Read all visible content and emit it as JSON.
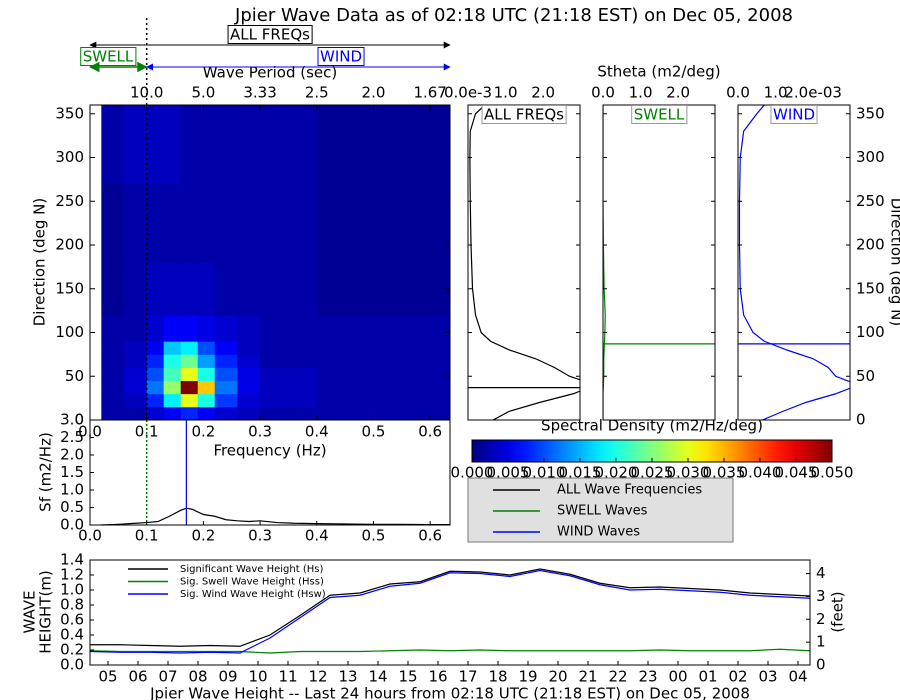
{
  "title": "Jpier Wave Data as of 02:18 UTC (21:18 EST) on Dec 05, 2008",
  "annotations": {
    "all_freqs": "ALL FREQs",
    "swell": "SWELL",
    "wind": "WIND"
  },
  "chart_data": [
    {
      "type": "heatmap",
      "xlabel": "Frequency (Hz)",
      "ylabel": "Direction (deg N)",
      "top_xlabel": "Wave Period (sec)",
      "xlim": [
        0,
        0.635
      ],
      "ylim": [
        0,
        360
      ],
      "xticks": [
        {
          "value": 0,
          "label": "0.0"
        },
        0.1,
        0.2,
        0.3,
        0.4,
        0.5,
        0.6
      ],
      "top_xticks": [
        {
          "value": 0.1,
          "label": "10.0"
        },
        {
          "value": 0.2,
          "label": "5.0"
        },
        {
          "value": 0.3,
          "label": "3.33"
        },
        {
          "value": 0.4,
          "label": "2.5"
        },
        {
          "value": 0.5,
          "label": "2.0"
        },
        {
          "value": 0.6,
          "label": "1.67"
        }
      ],
      "yticks": [
        0,
        50,
        100,
        150,
        200,
        250,
        300,
        350
      ],
      "x_edges": [
        0.02,
        0.06,
        0.1,
        0.13,
        0.16,
        0.19,
        0.22,
        0.26,
        0.3,
        0.4,
        0.635
      ],
      "y_edges": [
        0,
        15,
        30,
        45,
        60,
        75,
        90,
        120,
        180,
        270,
        360
      ],
      "values": [
        [
          0.002,
          0.002,
          0.004,
          0.006,
          0.008,
          0.006,
          0.004,
          0.003,
          0.002,
          0.002
        ],
        [
          0.002,
          0.003,
          0.008,
          0.018,
          0.03,
          0.02,
          0.009,
          0.004,
          0.003,
          0.002
        ],
        [
          0.002,
          0.004,
          0.012,
          0.026,
          0.05,
          0.034,
          0.012,
          0.005,
          0.003,
          0.002
        ],
        [
          0.002,
          0.004,
          0.01,
          0.022,
          0.03,
          0.02,
          0.01,
          0.005,
          0.003,
          0.002
        ],
        [
          0.002,
          0.003,
          0.008,
          0.02,
          0.024,
          0.014,
          0.008,
          0.004,
          0.002,
          0.002
        ],
        [
          0.002,
          0.003,
          0.006,
          0.016,
          0.018,
          0.01,
          0.006,
          0.003,
          0.002,
          0.002
        ],
        [
          0.002,
          0.002,
          0.004,
          0.006,
          0.006,
          0.005,
          0.004,
          0.003,
          0.002,
          0.002
        ],
        [
          0.001,
          0.002,
          0.003,
          0.003,
          0.003,
          0.003,
          0.002,
          0.002,
          0.002,
          0.001
        ],
        [
          0.001,
          0.002,
          0.002,
          0.002,
          0.002,
          0.002,
          0.002,
          0.002,
          0.002,
          0.001
        ],
        [
          0.002,
          0.003,
          0.003,
          0.003,
          0.002,
          0.002,
          0.002,
          0.002,
          0.002,
          0.001
        ]
      ],
      "separation_frequency": 0.1,
      "colormap": "jet",
      "colorbar": {
        "label": "Spectral Density (m2/Hz/deg)",
        "lim": [
          0,
          0.05
        ],
        "ticks": [
          {
            "value": 0,
            "label": "0.000"
          },
          0.005,
          {
            "value": 0.01,
            "label": "0.010"
          },
          0.015,
          {
            "value": 0.02,
            "label": "0.020"
          },
          0.025,
          {
            "value": 0.03,
            "label": "0.030"
          },
          0.035,
          {
            "value": 0.04,
            "label": "0.040"
          },
          0.045,
          {
            "value": 0.05,
            "label": "0.050"
          }
        ]
      }
    },
    {
      "type": "profile",
      "xlabel": "Stheta (m2/deg)",
      "ylabel": "Direction (deg N)",
      "y": [
        0,
        10,
        20,
        30,
        40,
        50,
        60,
        70,
        80,
        90,
        100,
        120,
        150,
        200,
        250,
        300,
        330,
        350,
        360
      ],
      "ylim": [
        0,
        360
      ],
      "yticks": [
        0,
        50,
        100,
        150,
        200,
        250,
        300,
        350
      ],
      "series": [
        {
          "name": "ALL Wave Frequencies",
          "title": "ALL FREQs",
          "color": "#000000",
          "xlim": [
            0,
            2.98
          ],
          "xticks": [
            {
              "value": 0,
              "label": "0.0e-3"
            },
            {
              "value": 1,
              "label": "1.0"
            },
            {
              "value": 2,
              "label": "2.0"
            }
          ],
          "values": [
            0.67,
            1.1,
            1.9,
            2.8,
            3.4,
            2.7,
            2.3,
            1.8,
            1.1,
            0.6,
            0.35,
            0.2,
            0.12,
            0.08,
            0.06,
            0.05,
            0.06,
            0.2,
            0.45
          ],
          "mean_direction": 37
        },
        {
          "name": "SWELL Waves",
          "title": "SWELL",
          "color": "#008000",
          "xlim": [
            0,
            2.98
          ],
          "xticks": [
            {
              "value": 0,
              "label": "0.0"
            },
            {
              "value": 1,
              "label": "1.0"
            },
            {
              "value": 2,
              "label": "2.0"
            }
          ],
          "values": [
            0,
            0,
            0,
            0,
            0.01,
            0.02,
            0.02,
            0.02,
            0.03,
            0.04,
            0.05,
            0.06,
            0.03,
            0.01,
            0,
            0,
            0,
            0,
            0
          ],
          "mean_direction": 87
        },
        {
          "name": "WIND Waves",
          "title": "WIND",
          "color": "#0000ff",
          "xlim": [
            0,
            2.98
          ],
          "xticks": [
            {
              "value": 0,
              "label": "0.0"
            },
            {
              "value": 1,
              "label": "1.0"
            },
            {
              "value": 2,
              "label": "2.0e-03"
            }
          ],
          "values": [
            0.65,
            1.2,
            1.8,
            2.6,
            3.2,
            2.6,
            2.4,
            2.0,
            1.3,
            0.7,
            0.4,
            0.15,
            0.06,
            0.04,
            0.04,
            0.06,
            0.15,
            0.5,
            0.7
          ],
          "mean_direction": 87
        }
      ]
    },
    {
      "type": "line",
      "ylabel": "Sf (m2/Hz)",
      "color": "#000000",
      "x": [
        0.02,
        0.05,
        0.08,
        0.1,
        0.12,
        0.14,
        0.16,
        0.17,
        0.18,
        0.2,
        0.22,
        0.24,
        0.26,
        0.28,
        0.3,
        0.33,
        0.36,
        0.4,
        0.45,
        0.5,
        0.55,
        0.6,
        0.635
      ],
      "values": [
        0,
        0.02,
        0.05,
        0.07,
        0.1,
        0.25,
        0.42,
        0.48,
        0.45,
        0.3,
        0.25,
        0.15,
        0.12,
        0.1,
        0.12,
        0.07,
        0.05,
        0.04,
        0.03,
        0.02,
        0.02,
        0.01,
        0.01
      ],
      "xlim": [
        0,
        0.635
      ],
      "xticks": [
        {
          "value": 0,
          "label": "0.0"
        },
        0.1,
        0.2,
        0.3,
        0.4,
        0.5,
        0.6
      ],
      "ylim": [
        0,
        3
      ],
      "yticks": [
        {
          "value": 0,
          "label": "0.0"
        },
        0.5,
        {
          "value": 1,
          "label": "1.0"
        },
        1.5,
        {
          "value": 2,
          "label": "2.0"
        },
        2.5,
        {
          "value": 3,
          "label": "3.0"
        }
      ],
      "separation_frequency": 0.1,
      "separation_color": "#008000",
      "peak_frequency": 0.17,
      "peak_color": "#0000ff"
    },
    {
      "type": "timeseries",
      "xlabel": "Jpier Wave Height -- Last 24 hours from 02:18 UTC (21:18 EST) on Dec 05, 2008",
      "ylabel": [
        "WAVE",
        "HEIGHT(m)"
      ],
      "y2label": "(feet)",
      "x": [
        4.4,
        5.4,
        6.4,
        7.4,
        8.4,
        9.4,
        10.4,
        11.4,
        12.4,
        13.4,
        14.4,
        15.4,
        16.4,
        17.4,
        18.4,
        19.4,
        20.4,
        21.4,
        22.4,
        23.4,
        24.4,
        25.4,
        26.4,
        27.4,
        28.4
      ],
      "xlim": [
        4.4,
        28.4
      ],
      "xticks": [
        {
          "value": 5,
          "label": "05"
        },
        {
          "value": 6,
          "label": "06"
        },
        {
          "value": 7,
          "label": "07"
        },
        {
          "value": 8,
          "label": "08"
        },
        {
          "value": 9,
          "label": "09"
        },
        10,
        11,
        12,
        13,
        14,
        15,
        16,
        17,
        18,
        19,
        20,
        21,
        22,
        23,
        {
          "value": 24,
          "label": "00"
        },
        {
          "value": 25,
          "label": "01"
        },
        {
          "value": 26,
          "label": "02"
        },
        {
          "value": 27,
          "label": "03"
        },
        {
          "value": 28,
          "label": "04"
        }
      ],
      "ylim": [
        0,
        1.4
      ],
      "yticks": [
        {
          "value": 0,
          "label": "0.0"
        },
        0.2,
        0.4,
        0.6,
        0.8,
        {
          "value": 1,
          "label": "1.0"
        },
        1.2,
        1.4
      ],
      "y2lim": [
        0,
        4.593
      ],
      "y2ticks": [
        0,
        1,
        2,
        3,
        4
      ],
      "series": [
        {
          "name": "Significant Wave Height (Hs)",
          "color": "#000000",
          "values": [
            0.27,
            0.27,
            0.26,
            0.25,
            0.26,
            0.25,
            0.4,
            0.66,
            0.93,
            0.96,
            1.08,
            1.11,
            1.25,
            1.24,
            1.2,
            1.28,
            1.21,
            1.09,
            1.03,
            1.04,
            1.02,
            1.0,
            0.96,
            0.94,
            0.92
          ]
        },
        {
          "name": "Sig. Swell Wave Height (Hss)",
          "color": "#008000",
          "values": [
            0.19,
            0.18,
            0.18,
            0.18,
            0.18,
            0.18,
            0.16,
            0.18,
            0.18,
            0.18,
            0.19,
            0.2,
            0.19,
            0.2,
            0.19,
            0.19,
            0.19,
            0.19,
            0.19,
            0.2,
            0.19,
            0.19,
            0.19,
            0.21,
            0.19
          ]
        },
        {
          "name": "Sig. Wind Wave Height (Hsw)",
          "color": "#0000ff",
          "values": [
            0.18,
            0.17,
            0.17,
            0.16,
            0.17,
            0.16,
            0.36,
            0.63,
            0.9,
            0.93,
            1.05,
            1.09,
            1.23,
            1.22,
            1.18,
            1.26,
            1.19,
            1.07,
            1.0,
            1.01,
            0.99,
            0.97,
            0.93,
            0.91,
            0.89
          ]
        }
      ]
    }
  ]
}
